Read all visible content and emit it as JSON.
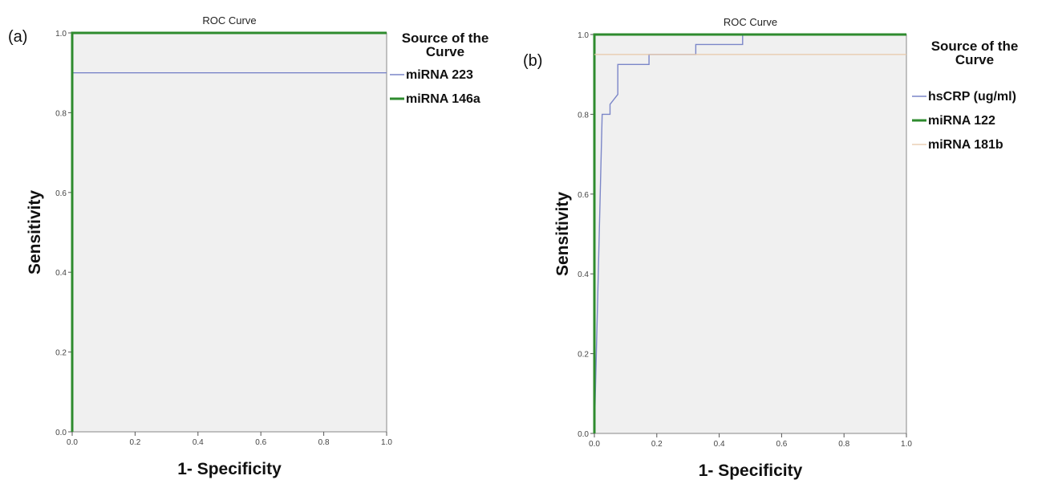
{
  "colors": {
    "plot_background": "#f0f0f0",
    "axis_frame": "#888888",
    "tick": "#555555",
    "text": "#111111"
  },
  "chart_data": [
    {
      "id": "a",
      "type": "line",
      "panel_label": "(a)",
      "title": "ROC Curve",
      "xlabel": "1- Specificity",
      "ylabel": "Sensitivity",
      "xlim": [
        0,
        1
      ],
      "ylim": [
        0,
        1
      ],
      "xticks": [
        "0.0",
        "0.2",
        "0.4",
        "0.6",
        "0.8",
        "1.0"
      ],
      "yticks": [
        "0.0",
        "0.2",
        "0.4",
        "0.6",
        "0.8",
        "1.0"
      ],
      "grid": false,
      "legend_title": "Source of the Curve",
      "legend_position": "right",
      "series": [
        {
          "name": "miRNA 223",
          "color": "#7b86c8",
          "width": 1.4,
          "x": [
            0,
            0,
            1
          ],
          "y": [
            0,
            0.9,
            0.9
          ]
        },
        {
          "name": "miRNA 146a",
          "color": "#2e8b2e",
          "width": 3,
          "x": [
            0,
            0,
            1
          ],
          "y": [
            0,
            1,
            1
          ]
        }
      ]
    },
    {
      "id": "b",
      "type": "line",
      "panel_label": "(b)",
      "title": "ROC Curve",
      "xlabel": "1- Specificity",
      "ylabel": "Sensitivity",
      "xlim": [
        0,
        1
      ],
      "ylim": [
        0,
        1
      ],
      "xticks": [
        "0.0",
        "0.2",
        "0.4",
        "0.6",
        "0.8",
        "1.0"
      ],
      "yticks": [
        "0.0",
        "0.2",
        "0.4",
        "0.6",
        "0.8",
        "1.0"
      ],
      "grid": false,
      "legend_title": "Source of the Curve",
      "legend_position": "right",
      "series": [
        {
          "name": "hsCRP (ug/ml)",
          "color": "#7b86c8",
          "width": 1.4,
          "x": [
            0,
            0.025,
            0.025,
            0.05,
            0.05,
            0.075,
            0.075,
            0.175,
            0.175,
            0.325,
            0.325,
            0.475,
            0.475,
            1
          ],
          "y": [
            0,
            0.8,
            0.8,
            0.8,
            0.825,
            0.85,
            0.925,
            0.925,
            0.95,
            0.95,
            0.975,
            0.975,
            1,
            1
          ]
        },
        {
          "name": "miRNA 122",
          "color": "#2e8b2e",
          "width": 3,
          "x": [
            0,
            0,
            1
          ],
          "y": [
            0,
            1,
            1
          ]
        },
        {
          "name": "miRNA 181b",
          "color": "#e8c8a8",
          "width": 1.2,
          "x": [
            0,
            1
          ],
          "y": [
            0.95,
            0.95
          ]
        }
      ]
    }
  ]
}
